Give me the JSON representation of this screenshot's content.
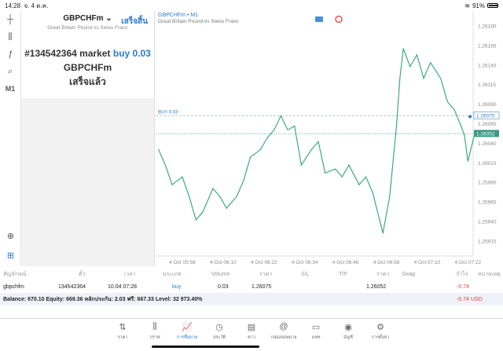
{
  "status": {
    "time": "14:28",
    "date": "จ. 4 ต.ค.",
    "battery": "91%",
    "battery_level": 0.91
  },
  "toolbar": {
    "items": [
      "crosshair-icon",
      "candlestick-icon",
      "function-icon",
      "objects-icon"
    ],
    "timeframe": "M1"
  },
  "panel": {
    "symbol": "GBPCHFm",
    "description": "Great Britain Pound vs Swiss Franc",
    "done_button": "เสร็จสิ้น",
    "order_text": "#134542364 market",
    "order_side": "buy 0.03",
    "order_symbol": "GBPCHFm",
    "order_status": "เสร็จแล้ว"
  },
  "chart": {
    "title": "GBPCHFm • M1",
    "subtitle": "Great Britain Pound vs Swiss Franc",
    "buy_label": "BUY 0.03",
    "buy_price": "1.26075",
    "current_price": "1.26052"
  },
  "chart_data": {
    "type": "line",
    "y_ticks": [
      "1.26190",
      "1.26165",
      "1.26140",
      "1.26115",
      "1.26090",
      "1.26065",
      "1.26040",
      "1.26015",
      "1.25990",
      "1.25965",
      "1.25940",
      "1.25915"
    ],
    "x_ticks": [
      "4 Oct 05:58",
      "4 Oct 06:10",
      "4 Oct 06:22",
      "4 Oct 06:34",
      "4 Oct 06:46",
      "4 Oct 06:58",
      "4 Oct 07:10",
      "4 Oct 07:22"
    ],
    "ylim": [
      1.25915,
      1.2619
    ],
    "line_color": "#3daa7d",
    "points": [
      [
        "05:51",
        1.26032
      ],
      [
        "05:53",
        1.26012
      ],
      [
        "05:55",
        1.25987
      ],
      [
        "05:58",
        1.25997
      ],
      [
        "06:00",
        1.25972
      ],
      [
        "06:02",
        1.25942
      ],
      [
        "06:04",
        1.25952
      ],
      [
        "06:07",
        1.25982
      ],
      [
        "06:09",
        1.25972
      ],
      [
        "06:11",
        1.25957
      ],
      [
        "06:14",
        1.25972
      ],
      [
        "06:16",
        1.25992
      ],
      [
        "06:18",
        1.26022
      ],
      [
        "06:21",
        1.26032
      ],
      [
        "06:23",
        1.26047
      ],
      [
        "06:25",
        1.26057
      ],
      [
        "06:27",
        1.26075
      ],
      [
        "06:29",
        1.26057
      ],
      [
        "06:31",
        1.26062
      ],
      [
        "06:33",
        1.26012
      ],
      [
        "06:36",
        1.26032
      ],
      [
        "06:38",
        1.26042
      ],
      [
        "06:40",
        1.26002
      ],
      [
        "06:43",
        1.26007
      ],
      [
        "06:45",
        1.25997
      ],
      [
        "06:47",
        1.26012
      ],
      [
        "06:50",
        1.25987
      ],
      [
        "06:52",
        1.25997
      ],
      [
        "06:54",
        1.25977
      ],
      [
        "06:57",
        1.25925
      ],
      [
        "06:59",
        1.25972
      ],
      [
        "07:01",
        1.26062
      ],
      [
        "07:02",
        1.26123
      ],
      [
        "07:03",
        1.26161
      ],
      [
        "07:05",
        1.26138
      ],
      [
        "07:07",
        1.26153
      ],
      [
        "07:09",
        1.26123
      ],
      [
        "07:11",
        1.26143
      ],
      [
        "07:14",
        1.26123
      ],
      [
        "07:16",
        1.26093
      ],
      [
        "07:18",
        1.26083
      ],
      [
        "07:20",
        1.26062
      ],
      [
        "07:21",
        1.2605
      ],
      [
        "07:22",
        1.26017
      ],
      [
        "07:24",
        1.26052
      ]
    ]
  },
  "table": {
    "headers": [
      "สัญลักษณ์",
      "ตั๋ว",
      "เวลา",
      "ประเภท",
      "Volume",
      "ราคา",
      "S/L",
      "T/P",
      "ราคา",
      "Swap",
      "กำไร",
      "หมายเหตุ"
    ],
    "row": {
      "symbol": "gbpchfm",
      "ticket": "134542364",
      "time": "10.04 07:28",
      "type": "buy",
      "volume": "0.03",
      "open_price": "1.26075",
      "price": "1.26052",
      "profit": "-0.74"
    },
    "balance": "Balance: 670.10 Equity: 669.36 หลักประกัน: 2.03 ฟรี: 667.33 Level: 32 973.40%",
    "total": "-0.74",
    "currency": "USD"
  },
  "nav": [
    {
      "label": "ราคา",
      "icon": "⇅"
    },
    {
      "label": "กราฟ",
      "icon": "⫼"
    },
    {
      "label": "การซื้อขาย",
      "icon": "📈"
    },
    {
      "label": "ประวัติ",
      "icon": "◷"
    },
    {
      "label": "ข่าว",
      "icon": "▤"
    },
    {
      "label": "กล่องจดหมาย",
      "icon": "@"
    },
    {
      "label": "แชท",
      "icon": "▭"
    },
    {
      "label": "บัญชี",
      "icon": "◉"
    },
    {
      "label": "การตั้งค่า",
      "icon": "⚙"
    }
  ],
  "colors": {
    "accent": "#2a7ad2",
    "loss": "#e04040",
    "line": "#3daa7d"
  }
}
